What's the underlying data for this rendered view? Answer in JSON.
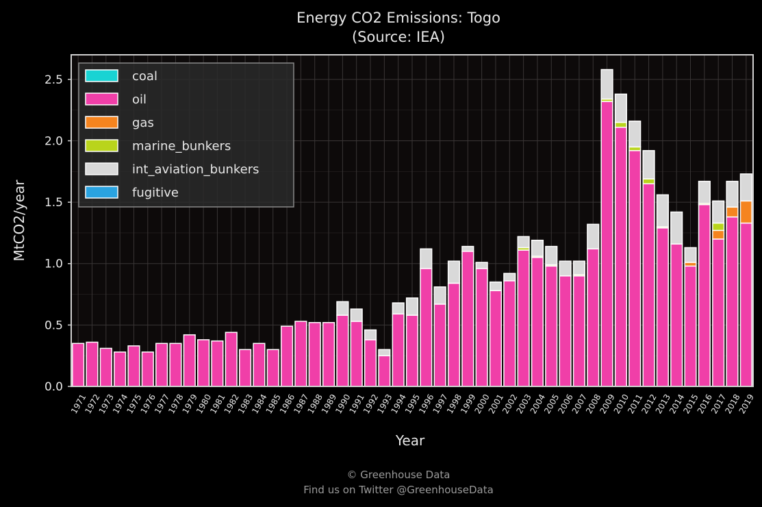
{
  "chart_data": {
    "type": "bar",
    "stacked": true,
    "title": "Energy CO2 Emissions: Togo",
    "subtitle": "(Source: IEA)",
    "xlabel": "Year",
    "ylabel": "MtCO2/year",
    "ylim": [
      0,
      2.7
    ],
    "yticks": [
      "0.0",
      "0.5",
      "1.0",
      "1.5",
      "2.0",
      "2.5"
    ],
    "grid": true,
    "legend_position": "top-left",
    "categories": [
      "1971",
      "1972",
      "1973",
      "1974",
      "1975",
      "1976",
      "1977",
      "1978",
      "1979",
      "1980",
      "1981",
      "1982",
      "1983",
      "1984",
      "1985",
      "1986",
      "1987",
      "1988",
      "1989",
      "1990",
      "1991",
      "1992",
      "1993",
      "1994",
      "1995",
      "1996",
      "1997",
      "1998",
      "1999",
      "2000",
      "2001",
      "2002",
      "2003",
      "2004",
      "2005",
      "2006",
      "2007",
      "2008",
      "2009",
      "2010",
      "2011",
      "2012",
      "2013",
      "2014",
      "2015",
      "2016",
      "2017",
      "2018",
      "2019"
    ],
    "series": [
      {
        "name": "coal",
        "color": "#19d3d3",
        "values": [
          0,
          0,
          0,
          0,
          0,
          0,
          0,
          0,
          0,
          0,
          0,
          0,
          0,
          0,
          0,
          0,
          0,
          0,
          0,
          0,
          0,
          0,
          0,
          0,
          0,
          0,
          0,
          0,
          0,
          0,
          0,
          0,
          0,
          0,
          0,
          0,
          0,
          0,
          0,
          0,
          0,
          0,
          0,
          0,
          0,
          0,
          0,
          0,
          0
        ]
      },
      {
        "name": "oil",
        "color": "#f03fa8",
        "values": [
          0.35,
          0.36,
          0.31,
          0.28,
          0.33,
          0.28,
          0.35,
          0.35,
          0.42,
          0.38,
          0.37,
          0.44,
          0.3,
          0.35,
          0.3,
          0.49,
          0.53,
          0.52,
          0.52,
          0.58,
          0.53,
          0.38,
          0.25,
          0.59,
          0.58,
          0.96,
          0.67,
          0.84,
          1.1,
          0.96,
          0.78,
          0.86,
          1.11,
          1.05,
          0.98,
          0.9,
          0.9,
          1.12,
          2.32,
          2.11,
          1.92,
          1.65,
          1.29,
          1.16,
          0.98,
          1.48,
          1.2,
          1.38,
          1.33
        ]
      },
      {
        "name": "gas",
        "color": "#f5841f",
        "values": [
          0,
          0,
          0,
          0,
          0,
          0,
          0,
          0,
          0,
          0,
          0,
          0,
          0,
          0,
          0,
          0,
          0,
          0,
          0,
          0,
          0,
          0,
          0,
          0,
          0,
          0,
          0,
          0,
          0,
          0,
          0,
          0,
          0,
          0,
          0,
          0,
          0,
          0,
          0,
          0,
          0,
          0,
          0,
          0,
          0.03,
          0,
          0.07,
          0.08,
          0.18
        ]
      },
      {
        "name": "marine_bunkers",
        "color": "#b9d41c",
        "values": [
          0,
          0,
          0,
          0,
          0,
          0,
          0,
          0,
          0,
          0,
          0,
          0,
          0,
          0,
          0,
          0,
          0,
          0,
          0,
          0,
          0,
          0,
          0,
          0,
          0,
          0,
          0,
          0,
          0,
          0,
          0,
          0,
          0.02,
          0.01,
          0.01,
          0,
          0.01,
          0,
          0.02,
          0.04,
          0.03,
          0.04,
          0.01,
          0,
          0,
          0.01,
          0.06,
          0,
          0
        ]
      },
      {
        "name": "int_aviation_bunkers",
        "color": "#d9d9d9",
        "values": [
          0,
          0,
          0,
          0,
          0,
          0,
          0,
          0,
          0,
          0,
          0,
          0,
          0,
          0,
          0,
          0,
          0,
          0,
          0,
          0.11,
          0.1,
          0.08,
          0.05,
          0.09,
          0.14,
          0.16,
          0.14,
          0.18,
          0.04,
          0.05,
          0.07,
          0.06,
          0.09,
          0.13,
          0.15,
          0.12,
          0.11,
          0.2,
          0.24,
          0.23,
          0.21,
          0.23,
          0.26,
          0.26,
          0.12,
          0.18,
          0.18,
          0.21,
          0.22
        ]
      },
      {
        "name": "fugitive",
        "color": "#2aa3e0",
        "values": [
          0,
          0,
          0,
          0,
          0,
          0,
          0,
          0,
          0,
          0,
          0,
          0,
          0,
          0,
          0,
          0,
          0,
          0,
          0,
          0,
          0,
          0,
          0,
          0,
          0,
          0,
          0,
          0,
          0,
          0,
          0,
          0,
          0,
          0,
          0,
          0,
          0,
          0,
          0,
          0,
          0,
          0,
          0,
          0,
          0,
          0,
          0,
          0,
          0
        ]
      }
    ],
    "colors": {
      "background": "#000000",
      "plot_background": "#0d0a0a",
      "grid": "#3a3636",
      "frame": "#d0d0d0",
      "bar_edge": "#ffffff"
    }
  },
  "footer": {
    "line1": "© Greenhouse Data",
    "line2": "Find us on Twitter @GreenhouseData"
  }
}
